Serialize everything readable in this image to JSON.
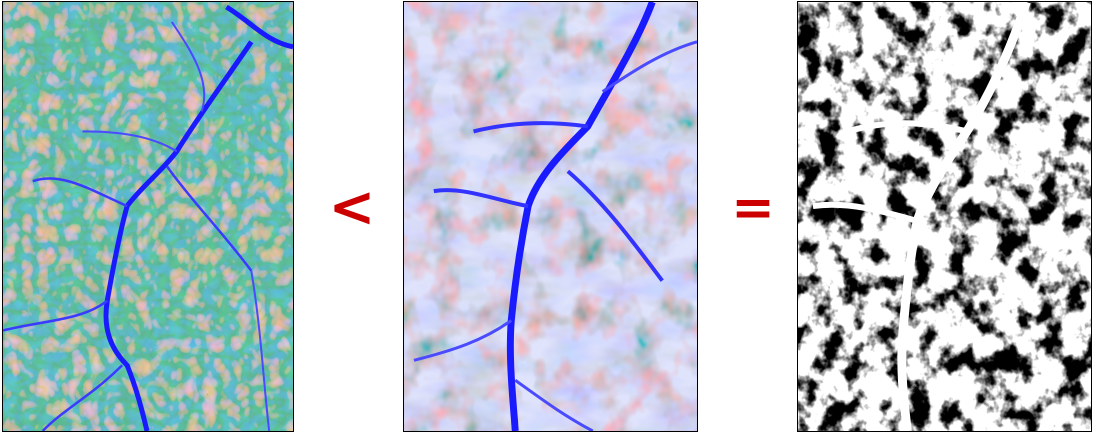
{
  "operators": {
    "less_than": "<",
    "equals": "="
  },
  "colors": {
    "operator": "#cc0000",
    "diverging_low": "#0000ff",
    "diverging_mid": "#ffffff",
    "diverging_high": "#d40000",
    "binary_fg": "#000000",
    "binary_bg": "#ffffff",
    "frame": "#000000"
  },
  "panels": [
    {
      "name": "left-map",
      "colormap": "blue-white-red"
    },
    {
      "name": "middle-map",
      "colormap": "blue-white-red"
    },
    {
      "name": "right-map",
      "colormap": "black-white"
    }
  ]
}
